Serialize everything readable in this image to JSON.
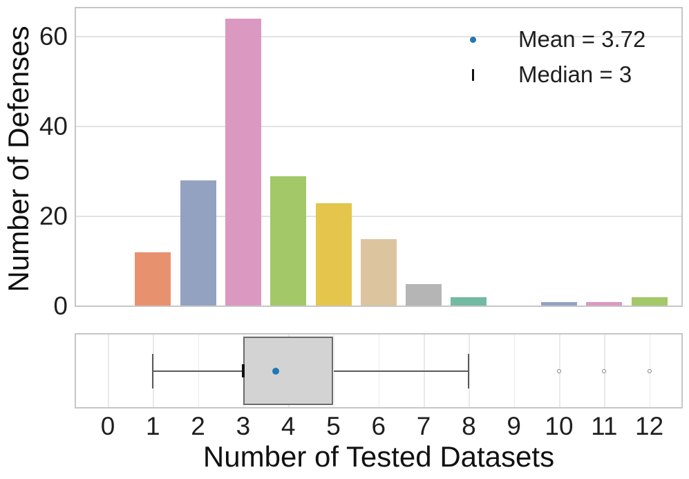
{
  "axes": {
    "ylabel": "Number of Defenses",
    "xlabel": "Number of Tested Datasets"
  },
  "legend": {
    "mean_label": "Mean = 3.72",
    "median_label": "Median = 3",
    "mean_marker_color": "#2078b4",
    "median_marker_color": "#111111"
  },
  "chart_data": [
    {
      "type": "bar",
      "title": "",
      "xlabel": "Number of Tested Datasets",
      "ylabel": "Number of Defenses",
      "categories": [
        0,
        1,
        2,
        3,
        4,
        5,
        6,
        7,
        8,
        9,
        10,
        11,
        12
      ],
      "values": [
        0,
        12,
        28,
        64,
        29,
        23,
        15,
        5,
        2,
        0,
        1,
        1,
        2
      ],
      "bar_colors": [
        "#73baa3",
        "#e8916f",
        "#94a2c2",
        "#db98c1",
        "#a3c868",
        "#e5c64d",
        "#dcc49e",
        "#b5b5b5",
        "#73baa3",
        "#e8916f",
        "#94a2c2",
        "#db98c1",
        "#a3c868"
      ],
      "yticks": [
        0,
        20,
        40,
        60
      ],
      "ylim": [
        0,
        66.6
      ],
      "xlim": [
        -0.73,
        12.74
      ],
      "grid": "horizontal",
      "legend_position": "upper right",
      "legend_entries": [
        {
          "marker": "dot",
          "color": "#2078b4",
          "label": "Mean = 3.72"
        },
        {
          "marker": "vline",
          "color": "#111111",
          "label": "Median = 3"
        }
      ],
      "mean": 3.72,
      "median": 3
    },
    {
      "type": "box",
      "orientation": "horizontal",
      "whisker_low": 1,
      "q1": 3,
      "median": 3,
      "q3": 5,
      "whisker_high": 8,
      "mean": 3.72,
      "outliers": [
        10,
        11,
        12
      ],
      "xlim": [
        -0.73,
        12.74
      ],
      "grid": "vertical",
      "box_fill": "#d3d3d3",
      "box_border": "#6b6b6b",
      "whisker_color": "#5a5a5a",
      "median_color": "#111111",
      "mean_color": "#2078b4",
      "outlier_color": "#808080"
    }
  ],
  "colors": {
    "background": "#ffffff",
    "grid": "#e2e2e2",
    "spine": "#c6c6c6",
    "text": "#1f1f1f"
  }
}
